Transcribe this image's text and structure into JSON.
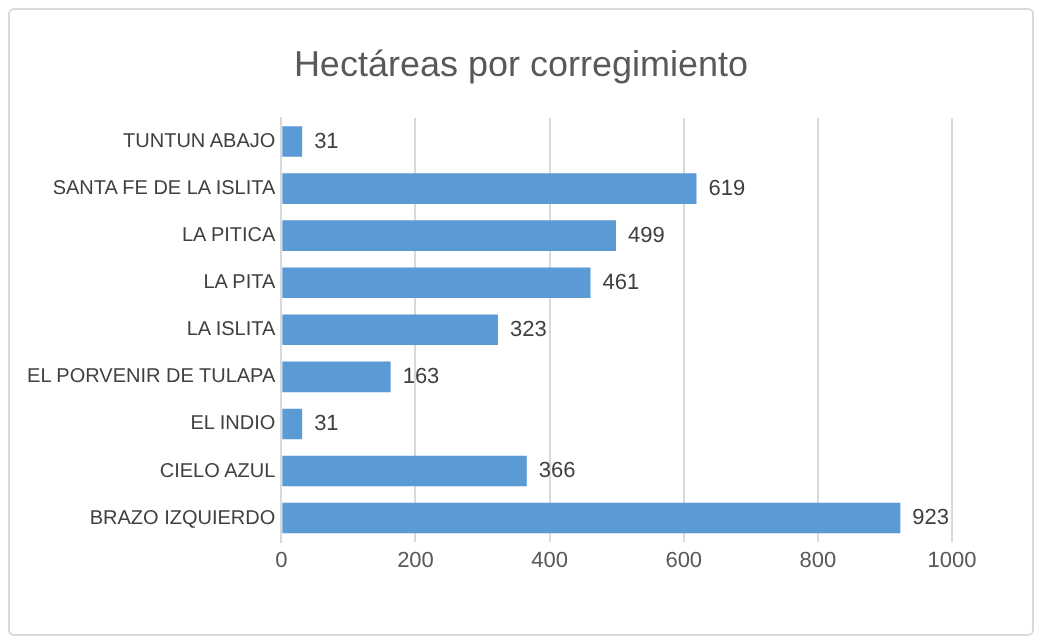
{
  "chart_data": {
    "type": "bar",
    "orientation": "horizontal",
    "title": "Hectáreas por corregimiento",
    "categories": [
      "TUNTUN ABAJO",
      "SANTA FE DE LA ISLITA",
      "LA PITICA",
      "LA PITA",
      "LA ISLITA",
      "EL PORVENIR DE TULAPA",
      "EL INDIO",
      "CIELO AZUL",
      "BRAZO IZQUIERDO"
    ],
    "values": [
      31,
      619,
      499,
      461,
      323,
      163,
      31,
      366,
      923
    ],
    "color": "#5b9bd5",
    "xlim": [
      0,
      1000
    ],
    "xticks": [
      0,
      200,
      400,
      600,
      800,
      1000
    ],
    "grid": "x",
    "legend": false,
    "data_labels": true
  }
}
